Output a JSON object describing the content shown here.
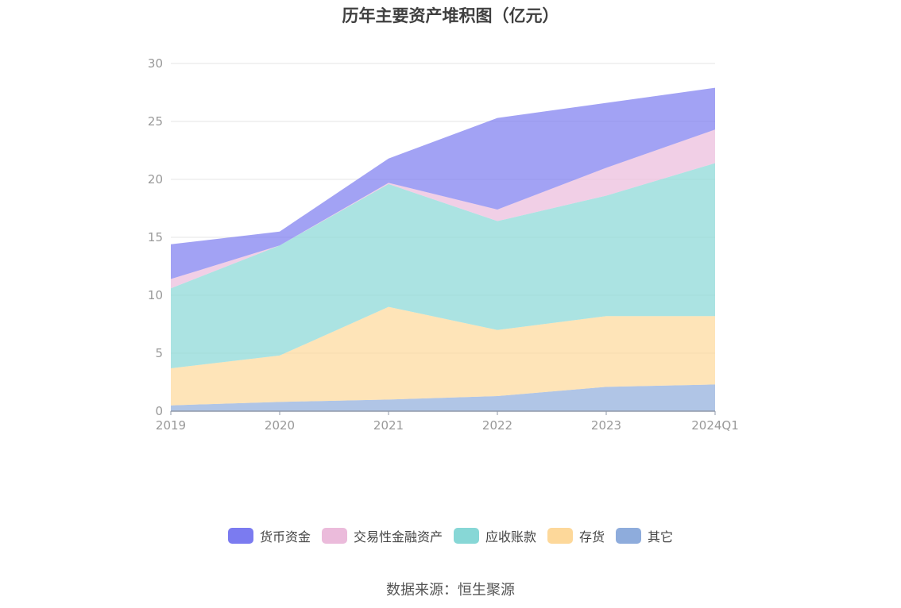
{
  "title": "历年主要资产堆积图（亿元）",
  "source": "数据来源：恒生聚源",
  "chart_data": {
    "type": "area",
    "stacked": true,
    "categories": [
      "2019",
      "2020",
      "2021",
      "2022",
      "2023",
      "2024Q1"
    ],
    "ylim": [
      0,
      30
    ],
    "yticks": [
      0,
      5,
      10,
      15,
      20,
      25,
      30
    ],
    "grid": true,
    "legend_position": "bottom",
    "series": [
      {
        "name": "其它",
        "color": "#8eacdc",
        "values": [
          0.5,
          0.8,
          1.0,
          1.3,
          2.1,
          2.3
        ]
      },
      {
        "name": "存货",
        "color": "#fdd89a",
        "values": [
          3.2,
          4.0,
          8.0,
          5.7,
          6.1,
          5.9
        ]
      },
      {
        "name": "应收账款",
        "color": "#87d7d6",
        "values": [
          6.9,
          9.5,
          10.6,
          9.4,
          10.4,
          13.2
        ]
      },
      {
        "name": "交易性金融资产",
        "color": "#ebbbdb",
        "values": [
          0.8,
          0.0,
          0.1,
          1.0,
          2.4,
          2.9
        ]
      },
      {
        "name": "货币资金",
        "color": "#7b7bf0",
        "values": [
          3.0,
          1.2,
          2.1,
          7.9,
          5.6,
          3.6
        ]
      }
    ]
  },
  "legend": [
    {
      "name": "货币资金",
      "color": "#7b7bf0"
    },
    {
      "name": "交易性金融资产",
      "color": "#ebbbdb"
    },
    {
      "name": "应收账款",
      "color": "#87d7d6"
    },
    {
      "name": "存货",
      "color": "#fdd89a"
    },
    {
      "name": "其它",
      "color": "#8eacdc"
    }
  ]
}
